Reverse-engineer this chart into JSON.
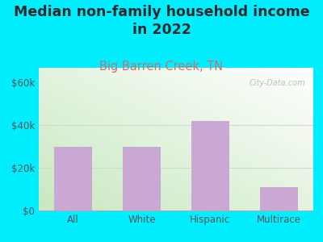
{
  "title": "Median non-family household income\nin 2022",
  "subtitle": "Big Barren Creek, TN",
  "categories": [
    "All",
    "White",
    "Hispanic",
    "Multirace"
  ],
  "values": [
    30000,
    30000,
    42000,
    11000
  ],
  "bar_color": "#c9a8d4",
  "title_fontsize": 12.5,
  "subtitle_fontsize": 10.5,
  "subtitle_color": "#c87070",
  "title_color": "#2a2a2a",
  "yticks": [
    0,
    20000,
    40000,
    60000
  ],
  "ylim": [
    0,
    67000
  ],
  "background_outer": "#00eeff",
  "watermark": "City-Data.com",
  "tick_color": "#555555",
  "grid_color": "#ccddcc",
  "bottom_spine_color": "#aaaaaa"
}
